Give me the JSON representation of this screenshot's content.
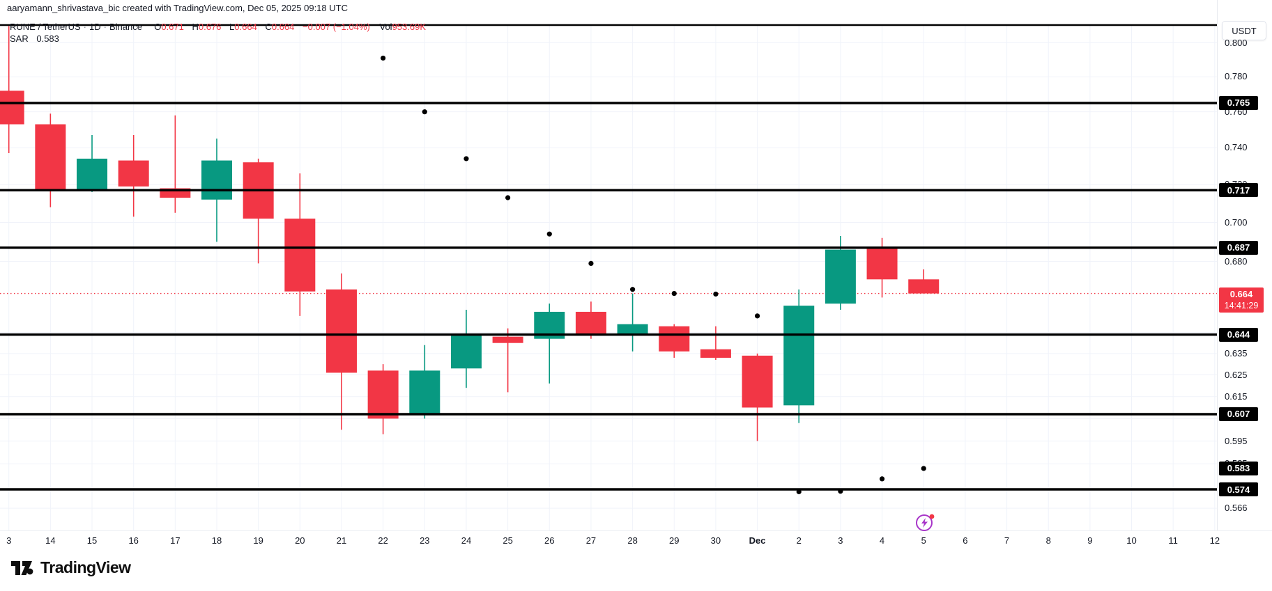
{
  "attribution": "aaryamann_shrivastava_bic created with TradingView.com, Dec 05, 2025 09:18 UTC",
  "legend": {
    "symbol": "RUNE / TetherUS",
    "separator": "·",
    "interval": "1D",
    "exchange": "Binance",
    "o_label": "O",
    "o_value": "0.671",
    "h_label": "H",
    "h_value": "0.676",
    "l_label": "L",
    "l_value": "0.664",
    "c_label": "C",
    "c_value": "0.664",
    "change": "−0.007 (−1.04%)",
    "vol_label": "Vol",
    "vol_value": "953.69K",
    "sar_label": "SAR",
    "sar_value": "0.583"
  },
  "price_axis": {
    "currency_button": "USDT",
    "ticks": [
      "0.800",
      "0.780",
      "0.760",
      "0.740",
      "0.720",
      "0.700",
      "0.680",
      "0.635",
      "0.625",
      "0.615",
      "0.605",
      "0.595",
      "0.585",
      "0.566"
    ],
    "level_badges": [
      "0.765",
      "0.717",
      "0.687",
      "0.644",
      "0.607",
      "0.574"
    ],
    "sar_badge": "0.583",
    "last_price_badge": {
      "value": "0.664",
      "countdown": "14:41:29"
    }
  },
  "time_axis": {
    "labels": [
      "3",
      "14",
      "15",
      "16",
      "17",
      "18",
      "19",
      "20",
      "21",
      "22",
      "23",
      "24",
      "25",
      "26",
      "27",
      "28",
      "29",
      "30",
      "Dec",
      "2",
      "3",
      "4",
      "5",
      "6",
      "7",
      "8",
      "9",
      "10",
      "11",
      "12"
    ],
    "bold_label": "Dec"
  },
  "branding": {
    "name": "TradingView"
  },
  "event_icon": {
    "name": "lightning-events",
    "date": "Dec 5"
  },
  "chart_data": {
    "type": "candlestick",
    "title": "RUNE / TetherUS · 1D · Binance",
    "scale": "log",
    "price_range_visible": [
      0.56,
      0.817
    ],
    "x_categories": [
      "Nov 13",
      "Nov 14",
      "Nov 15",
      "Nov 16",
      "Nov 17",
      "Nov 18",
      "Nov 19",
      "Nov 20",
      "Nov 21",
      "Nov 22",
      "Nov 23",
      "Nov 24",
      "Nov 25",
      "Nov 26",
      "Nov 27",
      "Nov 28",
      "Nov 29",
      "Nov 30",
      "Dec 1",
      "Dec 2",
      "Dec 3",
      "Dec 4",
      "Dec 5"
    ],
    "candles": [
      {
        "d": "Nov 13",
        "o": 0.772,
        "h": 0.81,
        "l": 0.737,
        "c": 0.753
      },
      {
        "d": "Nov 14",
        "o": 0.753,
        "h": 0.759,
        "l": 0.708,
        "c": 0.717
      },
      {
        "d": "Nov 15",
        "o": 0.717,
        "h": 0.747,
        "l": 0.716,
        "c": 0.734
      },
      {
        "d": "Nov 16",
        "o": 0.733,
        "h": 0.747,
        "l": 0.703,
        "c": 0.719
      },
      {
        "d": "Nov 17",
        "o": 0.718,
        "h": 0.758,
        "l": 0.705,
        "c": 0.713
      },
      {
        "d": "Nov 18",
        "o": 0.712,
        "h": 0.745,
        "l": 0.69,
        "c": 0.733
      },
      {
        "d": "Nov 19",
        "o": 0.732,
        "h": 0.734,
        "l": 0.679,
        "c": 0.702
      },
      {
        "d": "Nov 20",
        "o": 0.702,
        "h": 0.726,
        "l": 0.653,
        "c": 0.665
      },
      {
        "d": "Nov 21",
        "o": 0.666,
        "h": 0.674,
        "l": 0.6,
        "c": 0.626
      },
      {
        "d": "Nov 22",
        "o": 0.627,
        "h": 0.63,
        "l": 0.598,
        "c": 0.605
      },
      {
        "d": "Nov 23",
        "o": 0.607,
        "h": 0.639,
        "l": 0.605,
        "c": 0.627
      },
      {
        "d": "Nov 24",
        "o": 0.628,
        "h": 0.656,
        "l": 0.619,
        "c": 0.644
      },
      {
        "d": "Nov 25",
        "o": 0.643,
        "h": 0.647,
        "l": 0.617,
        "c": 0.64
      },
      {
        "d": "Nov 26",
        "o": 0.642,
        "h": 0.659,
        "l": 0.621,
        "c": 0.655
      },
      {
        "d": "Nov 27",
        "o": 0.655,
        "h": 0.66,
        "l": 0.642,
        "c": 0.644
      },
      {
        "d": "Nov 28",
        "o": 0.644,
        "h": 0.664,
        "l": 0.636,
        "c": 0.649
      },
      {
        "d": "Nov 29",
        "o": 0.648,
        "h": 0.649,
        "l": 0.633,
        "c": 0.636
      },
      {
        "d": "Nov 30",
        "o": 0.637,
        "h": 0.648,
        "l": 0.632,
        "c": 0.633
      },
      {
        "d": "Dec 1",
        "o": 0.634,
        "h": 0.635,
        "l": 0.595,
        "c": 0.61
      },
      {
        "d": "Dec 2",
        "o": 0.611,
        "h": 0.666,
        "l": 0.603,
        "c": 0.658
      },
      {
        "d": "Dec 3",
        "o": 0.659,
        "h": 0.693,
        "l": 0.656,
        "c": 0.686
      },
      {
        "d": "Dec 4",
        "o": 0.687,
        "h": 0.692,
        "l": 0.662,
        "c": 0.671
      },
      {
        "d": "Dec 5",
        "o": 0.671,
        "h": 0.676,
        "l": 0.664,
        "c": 0.664
      }
    ],
    "sar_dots": [
      {
        "d": "Nov 22",
        "v": 0.791
      },
      {
        "d": "Nov 23",
        "v": 0.76
      },
      {
        "d": "Nov 24",
        "v": 0.734
      },
      {
        "d": "Nov 25",
        "v": 0.713
      },
      {
        "d": "Nov 26",
        "v": 0.694
      },
      {
        "d": "Nov 27",
        "v": 0.679
      },
      {
        "d": "Nov 28",
        "v": 0.666
      },
      {
        "d": "Nov 29",
        "v": 0.664
      },
      {
        "d": "Nov 30",
        "v": 0.6637
      },
      {
        "d": "Dec 1",
        "v": 0.653
      },
      {
        "d": "Dec 2",
        "v": 0.573
      },
      {
        "d": "Dec 3",
        "v": 0.5732
      },
      {
        "d": "Dec 4",
        "v": 0.5785
      },
      {
        "d": "Dec 5",
        "v": 0.583
      }
    ],
    "horizontal_levels": [
      0.765,
      0.717,
      0.687,
      0.644,
      0.607,
      0.574
    ],
    "last_price": 0.664,
    "grid_tick_prices": [
      0.8,
      0.78,
      0.76,
      0.74,
      0.72,
      0.7,
      0.68,
      0.645,
      0.635,
      0.625,
      0.615,
      0.605,
      0.595,
      0.585,
      0.566
    ]
  },
  "colors": {
    "up": "#089981",
    "down": "#F23645",
    "level_line": "#000000",
    "grid": "#F0F3FA",
    "text": "#131722",
    "muted": "#787b86",
    "sar_dot": "#000000",
    "last_price_line": "#F23645",
    "event_purple": "#A835C9",
    "badge_bg": "#000000"
  }
}
